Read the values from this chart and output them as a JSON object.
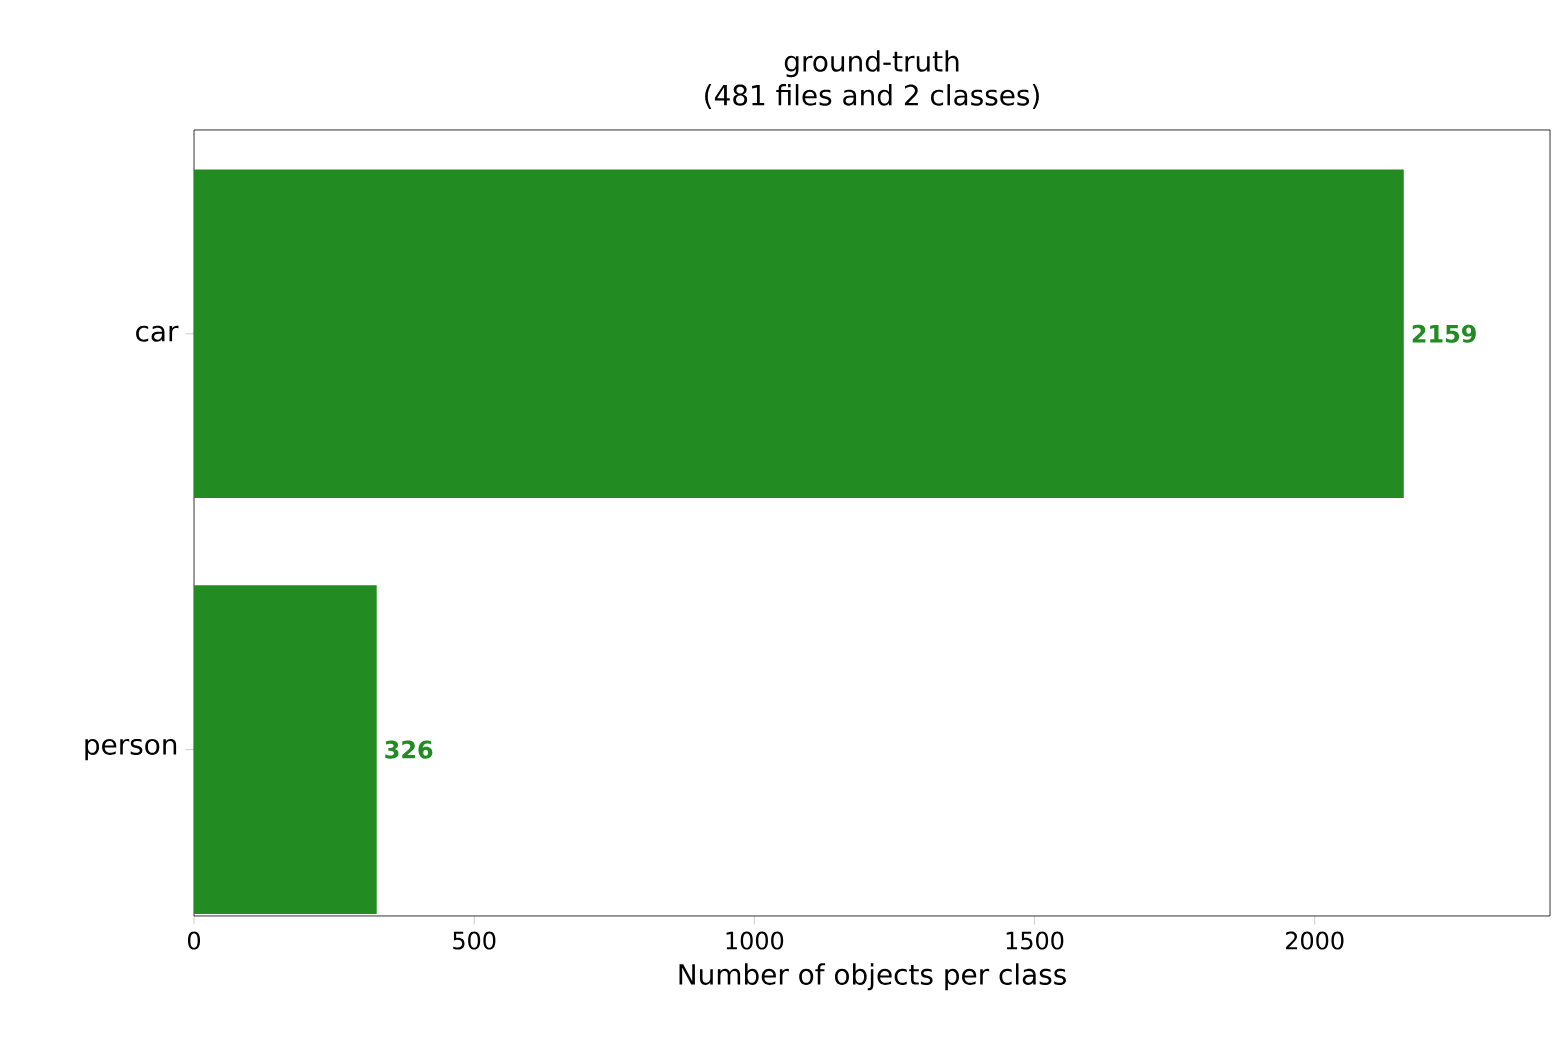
{
  "chart_data": {
    "type": "bar",
    "orientation": "horizontal",
    "title": "ground-truth",
    "subtitle": "(481 files and 2 classes)",
    "xlabel": "Number of objects per class",
    "categories": [
      "car",
      "person"
    ],
    "values": [
      2159,
      326
    ],
    "color": "#228b22",
    "xlim": [
      0,
      2420
    ],
    "xticks": [
      0,
      500,
      1000,
      1500,
      2000
    ],
    "data_labels": true,
    "grid": false
  }
}
